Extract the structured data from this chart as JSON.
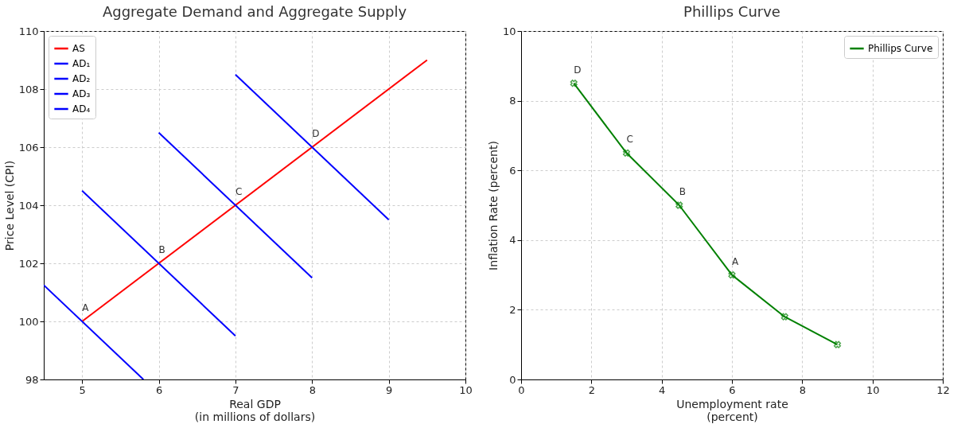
{
  "chart_data": [
    {
      "type": "line",
      "title": "Aggregate Demand and Aggregate Supply",
      "xlabel": "Real GDP\n(in millions of dollars)",
      "ylabel": "Price Level (CPI)",
      "xlim": [
        4.5,
        10
      ],
      "xticks": [
        5,
        6,
        7,
        8,
        9,
        10
      ],
      "ylim": [
        98,
        110
      ],
      "yticks": [
        98,
        100,
        102,
        104,
        106,
        108,
        110
      ],
      "grid": true,
      "legend": "top left",
      "series": [
        {
          "name": "AS",
          "color": "#ff0000",
          "x": [
            5,
            9.5
          ],
          "values": [
            100,
            109
          ]
        },
        {
          "name": "AD₁",
          "color": "#0000ff",
          "x": [
            4.5,
            5.8
          ],
          "values": [
            101.25,
            98
          ]
        },
        {
          "name": "AD₂",
          "color": "#0000ff",
          "x": [
            5,
            7
          ],
          "values": [
            104.5,
            99.5
          ]
        },
        {
          "name": "AD₃",
          "color": "#0000ff",
          "x": [
            6,
            8
          ],
          "values": [
            106.5,
            101.5
          ]
        },
        {
          "name": "AD₄",
          "color": "#0000ff",
          "x": [
            7,
            9
          ],
          "values": [
            108.5,
            103.5
          ]
        }
      ],
      "annotations": [
        {
          "text": "A",
          "x": 5,
          "y": 100
        },
        {
          "text": "B",
          "x": 6,
          "y": 102
        },
        {
          "text": "C",
          "x": 7,
          "y": 104
        },
        {
          "text": "D",
          "x": 8,
          "y": 106
        }
      ]
    },
    {
      "type": "line",
      "title": "Phillips Curve",
      "xlabel": "Unemployment rate\n(percent)",
      "ylabel": "Inflation Rate (percent)",
      "xlim": [
        0,
        12
      ],
      "xticks": [
        0,
        2,
        4,
        6,
        8,
        10,
        12
      ],
      "ylim": [
        0,
        10
      ],
      "yticks": [
        0,
        2,
        4,
        6,
        8,
        10
      ],
      "grid": true,
      "legend": "top right",
      "marker": "cross",
      "series": [
        {
          "name": "Phillips Curve",
          "color": "#008000",
          "x": [
            1.5,
            3,
            4.5,
            6,
            7.5,
            9
          ],
          "values": [
            8.5,
            6.5,
            5,
            3,
            1.8,
            1
          ]
        }
      ],
      "annotations": [
        {
          "text": "D",
          "x": 1.5,
          "y": 8.5
        },
        {
          "text": "C",
          "x": 3,
          "y": 6.5
        },
        {
          "text": "B",
          "x": 4.5,
          "y": 5
        },
        {
          "text": "A",
          "x": 6,
          "y": 3
        }
      ]
    }
  ]
}
